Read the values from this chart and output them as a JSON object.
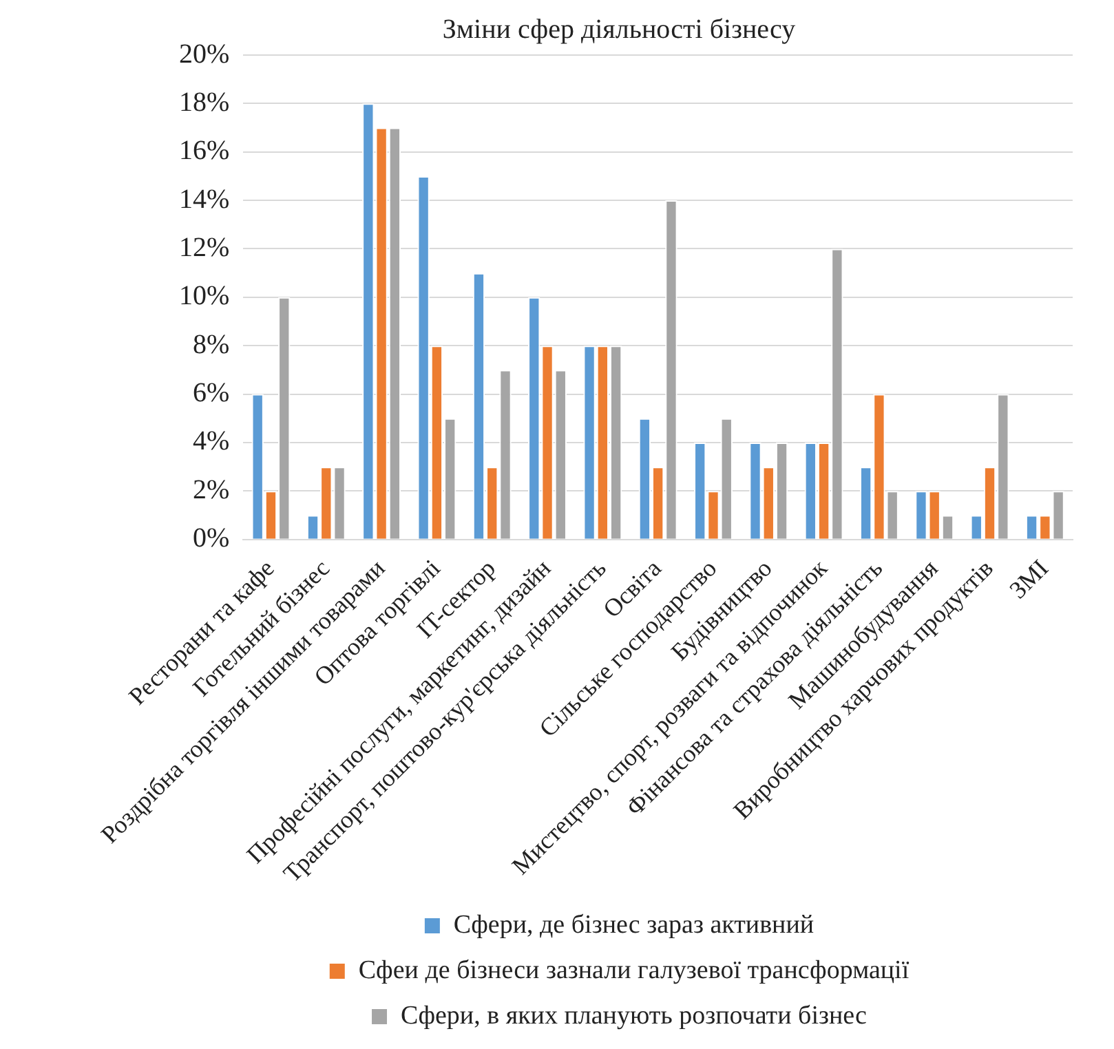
{
  "chart_data": {
    "type": "bar",
    "title": "Зміни сфер діяльності бізнесу",
    "categories": [
      "Ресторани та кафе",
      "Готельний бізнес",
      "Роздрібна торгівля іншими товарами",
      "Оптова торгівлі",
      "IT-сектор",
      "Професійні послуги, маркетинг, дизайн",
      "Транспорт, поштово-кур'єрська діяльність",
      "Освіта",
      "Сільське господарство",
      "Будівництво",
      "Мистецтво, спорт, розваги та відпочинок",
      "Фінансова та страхова діяльність",
      "Машинобудування",
      "Виробництво харчових продуктів",
      "ЗМІ"
    ],
    "series": [
      {
        "name": "Сфери, де бізнес зараз активний",
        "color": "#5b9bd5",
        "values": [
          6,
          1,
          18,
          15,
          11,
          10,
          8,
          5,
          4,
          4,
          4,
          3,
          2,
          1,
          1
        ]
      },
      {
        "name": "Сфеи де бізнеси зазнали галузевої трансформації",
        "color": "#ed7d31",
        "values": [
          2,
          3,
          17,
          8,
          3,
          8,
          8,
          3,
          2,
          3,
          4,
          6,
          2,
          3,
          1
        ]
      },
      {
        "name": "Сфери, в яких планують розпочати бізнес",
        "color": "#a5a5a5",
        "values": [
          10,
          3,
          17,
          5,
          7,
          7,
          8,
          14,
          5,
          4,
          12,
          2,
          1,
          6,
          2
        ]
      }
    ],
    "ylim": [
      0,
      20
    ],
    "yticks": [
      {
        "value": 0,
        "label": "0%"
      },
      {
        "value": 2,
        "label": "2%"
      },
      {
        "value": 4,
        "label": "4%"
      },
      {
        "value": 6,
        "label": "6%"
      },
      {
        "value": 8,
        "label": "8%"
      },
      {
        "value": 10,
        "label": "10%"
      },
      {
        "value": 12,
        "label": "12%"
      },
      {
        "value": 14,
        "label": "14%"
      },
      {
        "value": 16,
        "label": "16%"
      },
      {
        "value": 18,
        "label": "18%"
      },
      {
        "value": 20,
        "label": "20%"
      }
    ],
    "grid": "y",
    "legend": "bottom"
  }
}
